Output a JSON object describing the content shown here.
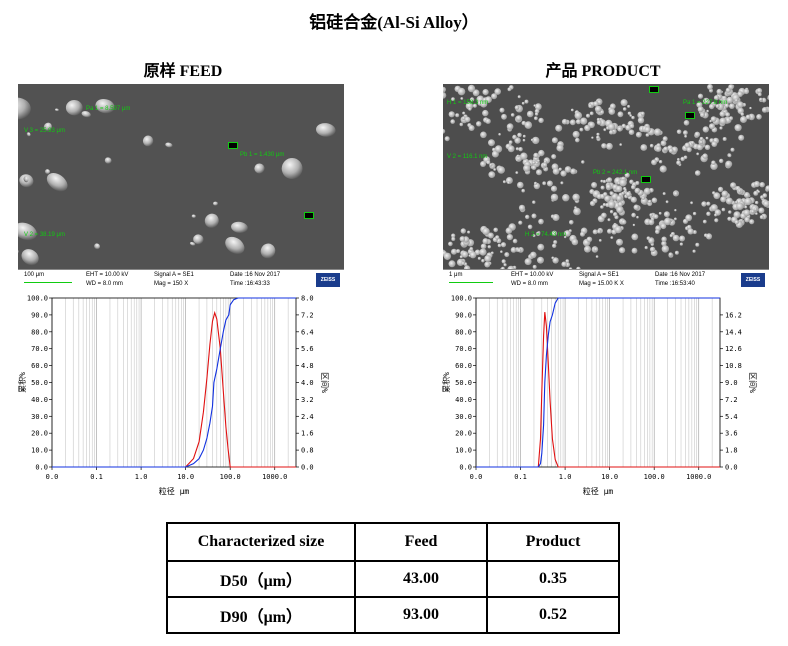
{
  "title": "铝硅合金(Al-Si Alloy）",
  "panels": [
    {
      "id": "feed",
      "title": "原样 FEED",
      "sem": {
        "scale_label": "100 μm",
        "eht": "EHT = 10.00 kV",
        "wd": "WD = 8.0 mm",
        "signal": "Signal A = SE1",
        "mag": "Mag = 150 X",
        "date": "Date :16 Nov 2017",
        "time": "Time :16:43:33",
        "brand": "ZEISS",
        "measurements": [
          "Pa 1 = 8.597 μm",
          "Pb 1 = 1.430 μm",
          "V 3 = 25.93 μm",
          "V 2 = 38.19 μm"
        ]
      }
    },
    {
      "id": "product",
      "title": "产品 PRODUCT",
      "sem": {
        "scale_label": "1 μm",
        "eht": "EHT = 10.00 kV",
        "wd": "WD = 8.0 mm",
        "signal": "Signal A = SE1",
        "mag": "Mag = 15.00 K X",
        "date": "Date :16 Nov 2017",
        "time": "Time :16:53:40",
        "brand": "ZEISS",
        "measurements": [
          "H 1 = 158.3 nm",
          "Pa 1 = 227.8 nm",
          "V 2 = 116.1 nm",
          "Pb 2 = 242.1 nm",
          "H 2 = 74.43 nm"
        ]
      }
    }
  ],
  "chart_data": [
    {
      "type": "line",
      "panel": "原样 FEED",
      "x_scale": "log",
      "xlim": [
        0.01,
        3000
      ],
      "x_ticks": [
        "0.0",
        "0.1",
        "1.0",
        "10.0",
        "100.0",
        "1000.0"
      ],
      "xlabel": "粒径 μm",
      "ylabel_left": "累积%",
      "ylabel_right": "区间%",
      "y_left_ticks": [
        "0.0",
        "10.0",
        "20.0",
        "30.0",
        "40.0",
        "50.0",
        "60.0",
        "70.0",
        "80.0",
        "90.0",
        "100.0"
      ],
      "y_right_ticks": [
        "0.0",
        "0.8",
        "1.6",
        "2.4",
        "3.2",
        "4.0",
        "4.8",
        "5.6",
        "6.4",
        "7.2",
        "8.0"
      ],
      "ylim_left": [
        0,
        100
      ],
      "ylim_right": [
        0,
        8
      ],
      "series": [
        {
          "color": "#e01010",
          "axis": "right",
          "x": [
            0.01,
            10,
            15,
            20,
            25,
            30,
            35,
            40,
            45,
            50,
            60,
            70,
            80,
            90,
            100,
            3000
          ],
          "y": [
            0,
            0,
            0.4,
            1.2,
            2.6,
            4.2,
            5.8,
            6.9,
            7.3,
            7.0,
            5.6,
            3.6,
            1.9,
            0.8,
            0,
            0
          ]
        },
        {
          "color": "#1030e0",
          "axis": "left",
          "x": [
            0.01,
            10,
            15,
            20,
            25,
            30,
            35,
            40,
            43,
            50,
            60,
            70,
            80,
            93,
            100,
            120,
            150,
            3000
          ],
          "y": [
            0,
            0,
            2,
            5,
            10,
            17,
            26,
            36,
            50,
            58,
            70,
            80,
            87,
            90,
            96,
            99,
            100,
            100
          ]
        }
      ]
    },
    {
      "type": "line",
      "panel": "产品 PRODUCT",
      "x_scale": "log",
      "xlim": [
        0.01,
        3000
      ],
      "x_ticks": [
        "0.0",
        "0.1",
        "1.0",
        "10.0",
        "100.0",
        "1000.0"
      ],
      "xlabel": "粒径 μm",
      "ylabel_left": "累积%",
      "ylabel_right": "区间%",
      "y_left_ticks": [
        "0.0",
        "10.0",
        "20.0",
        "30.0",
        "40.0",
        "50.0",
        "60.0",
        "70.0",
        "80.0",
        "90.0",
        "100.0"
      ],
      "y_right_ticks": [
        "0.0",
        "1.8",
        "3.6",
        "5.4",
        "7.2",
        "9.0",
        "10.8",
        "12.6",
        "14.4",
        "16.2"
      ],
      "ylim_left": [
        0,
        100
      ],
      "ylim_right": [
        0,
        18
      ],
      "series": [
        {
          "color": "#e01010",
          "axis": "right",
          "x": [
            0.01,
            0.25,
            0.28,
            0.3,
            0.33,
            0.35,
            0.38,
            0.42,
            0.46,
            0.52,
            0.6,
            0.7,
            3000
          ],
          "y": [
            0,
            0,
            3,
            8,
            14,
            16.5,
            15,
            11,
            7,
            3,
            0.8,
            0,
            0
          ]
        },
        {
          "color": "#1030e0",
          "axis": "left",
          "x": [
            0.01,
            0.25,
            0.28,
            0.3,
            0.33,
            0.35,
            0.38,
            0.42,
            0.46,
            0.52,
            0.6,
            0.7,
            3000
          ],
          "y": [
            0,
            0,
            2,
            8,
            25,
            50,
            66,
            78,
            86,
            90,
            97,
            100,
            100
          ]
        }
      ]
    }
  ],
  "table": {
    "header": [
      "Characterized size",
      "Feed",
      "Product"
    ],
    "rows": [
      [
        "D50（μm）",
        "43.00",
        "0.35"
      ],
      [
        "D90（μm）",
        "93.00",
        "0.52"
      ]
    ]
  }
}
